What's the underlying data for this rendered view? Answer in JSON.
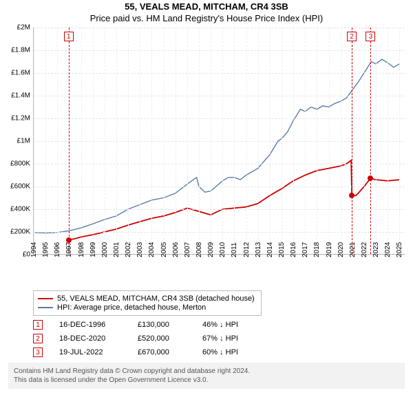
{
  "header": {
    "title": "55, VEALS MEAD, MITCHAM, CR4 3SB",
    "subtitle": "Price paid vs. HM Land Registry's House Price Index (HPI)"
  },
  "chart": {
    "type": "line",
    "bg": "#ffffff",
    "grid_color": "#e5e5e5",
    "xlim": [
      1994,
      2025.5
    ],
    "ylim": [
      0,
      2000000
    ],
    "y_ticks": [
      {
        "v": 0,
        "label": "£0"
      },
      {
        "v": 200000,
        "label": "£200K"
      },
      {
        "v": 400000,
        "label": "£400K"
      },
      {
        "v": 600000,
        "label": "£600K"
      },
      {
        "v": 800000,
        "label": "£800K"
      },
      {
        "v": 1000000,
        "label": "£1M"
      },
      {
        "v": 1200000,
        "label": "£1.2M"
      },
      {
        "v": 1400000,
        "label": "£1.4M"
      },
      {
        "v": 1600000,
        "label": "£1.6M"
      },
      {
        "v": 1800000,
        "label": "£1.8M"
      },
      {
        "v": 2000000,
        "label": "£2M"
      }
    ],
    "x_ticks": [
      1994,
      1995,
      1996,
      1997,
      1998,
      1999,
      2000,
      2001,
      2002,
      2003,
      2004,
      2005,
      2006,
      2007,
      2008,
      2009,
      2010,
      2011,
      2012,
      2013,
      2014,
      2015,
      2016,
      2017,
      2018,
      2019,
      2020,
      2021,
      2022,
      2023,
      2024,
      2025
    ],
    "series": [
      {
        "name": "55, VEALS MEAD, MITCHAM, CR4 3SB (detached house)",
        "color": "#cc0000",
        "width": 1.8,
        "data": [
          [
            1996.96,
            130000
          ],
          [
            1997.5,
            140000
          ],
          [
            1998,
            155000
          ],
          [
            1999,
            175000
          ],
          [
            2000,
            200000
          ],
          [
            2001,
            225000
          ],
          [
            2002,
            260000
          ],
          [
            2003,
            290000
          ],
          [
            2004,
            320000
          ],
          [
            2005,
            340000
          ],
          [
            2006,
            370000
          ],
          [
            2007,
            410000
          ],
          [
            2008,
            380000
          ],
          [
            2009,
            350000
          ],
          [
            2010,
            400000
          ],
          [
            2011,
            410000
          ],
          [
            2012,
            420000
          ],
          [
            2013,
            450000
          ],
          [
            2014,
            520000
          ],
          [
            2015,
            580000
          ],
          [
            2016,
            650000
          ],
          [
            2017,
            700000
          ],
          [
            2018,
            740000
          ],
          [
            2019,
            760000
          ],
          [
            2020,
            780000
          ],
          [
            2020.5,
            800000
          ],
          [
            2020.9,
            830000
          ],
          [
            2020.96,
            520000
          ],
          [
            2021.3,
            520000
          ],
          [
            2021.5,
            540000
          ],
          [
            2022.0,
            600000
          ],
          [
            2022.3,
            640000
          ],
          [
            2022.55,
            670000
          ],
          [
            2023,
            660000
          ],
          [
            2024,
            650000
          ],
          [
            2025,
            660000
          ]
        ],
        "markers": [
          [
            1996.96,
            130000
          ],
          [
            2020.96,
            520000
          ],
          [
            2022.55,
            670000
          ]
        ]
      },
      {
        "name": "HPI: Average price, detached house, Merton",
        "color": "#5b7ba8",
        "width": 1.4,
        "data": [
          [
            1994,
            195000
          ],
          [
            1995,
            190000
          ],
          [
            1996,
            195000
          ],
          [
            1997,
            210000
          ],
          [
            1998,
            235000
          ],
          [
            1999,
            270000
          ],
          [
            2000,
            310000
          ],
          [
            2001,
            340000
          ],
          [
            2002,
            400000
          ],
          [
            2003,
            440000
          ],
          [
            2004,
            480000
          ],
          [
            2005,
            500000
          ],
          [
            2006,
            540000
          ],
          [
            2007,
            620000
          ],
          [
            2007.8,
            680000
          ],
          [
            2008,
            600000
          ],
          [
            2008.5,
            550000
          ],
          [
            2009,
            560000
          ],
          [
            2010,
            650000
          ],
          [
            2010.5,
            680000
          ],
          [
            2011,
            680000
          ],
          [
            2011.5,
            660000
          ],
          [
            2012,
            700000
          ],
          [
            2013,
            760000
          ],
          [
            2014,
            880000
          ],
          [
            2014.7,
            1000000
          ],
          [
            2015,
            1020000
          ],
          [
            2015.5,
            1080000
          ],
          [
            2016,
            1180000
          ],
          [
            2016.6,
            1280000
          ],
          [
            2017,
            1260000
          ],
          [
            2017.5,
            1300000
          ],
          [
            2018,
            1280000
          ],
          [
            2018.5,
            1310000
          ],
          [
            2019,
            1300000
          ],
          [
            2019.5,
            1330000
          ],
          [
            2020,
            1350000
          ],
          [
            2020.5,
            1380000
          ],
          [
            2021,
            1450000
          ],
          [
            2021.5,
            1520000
          ],
          [
            2022,
            1600000
          ],
          [
            2022.6,
            1700000
          ],
          [
            2023,
            1680000
          ],
          [
            2023.5,
            1720000
          ],
          [
            2024,
            1690000
          ],
          [
            2024.5,
            1650000
          ],
          [
            2025,
            1680000
          ]
        ]
      }
    ],
    "event_lines": [
      {
        "num": "1",
        "x": 1996.96
      },
      {
        "num": "2",
        "x": 2020.96
      },
      {
        "num": "3",
        "x": 2022.55
      }
    ]
  },
  "legend": {
    "items": [
      {
        "color": "#cc0000",
        "label": "55, VEALS MEAD, MITCHAM, CR4 3SB (detached house)"
      },
      {
        "color": "#5b7ba8",
        "label": "HPI: Average price, detached house, Merton"
      }
    ]
  },
  "events": [
    {
      "num": "1",
      "date": "16-DEC-1996",
      "price": "£130,000",
      "hpi": "46% ↓ HPI"
    },
    {
      "num": "2",
      "date": "18-DEC-2020",
      "price": "£520,000",
      "hpi": "67% ↓ HPI"
    },
    {
      "num": "3",
      "date": "19-JUL-2022",
      "price": "£670,000",
      "hpi": "60% ↓ HPI"
    }
  ],
  "footer": {
    "line1": "Contains HM Land Registry data © Crown copyright and database right 2024.",
    "line2": "This data is licensed under the Open Government Licence v3.0."
  }
}
